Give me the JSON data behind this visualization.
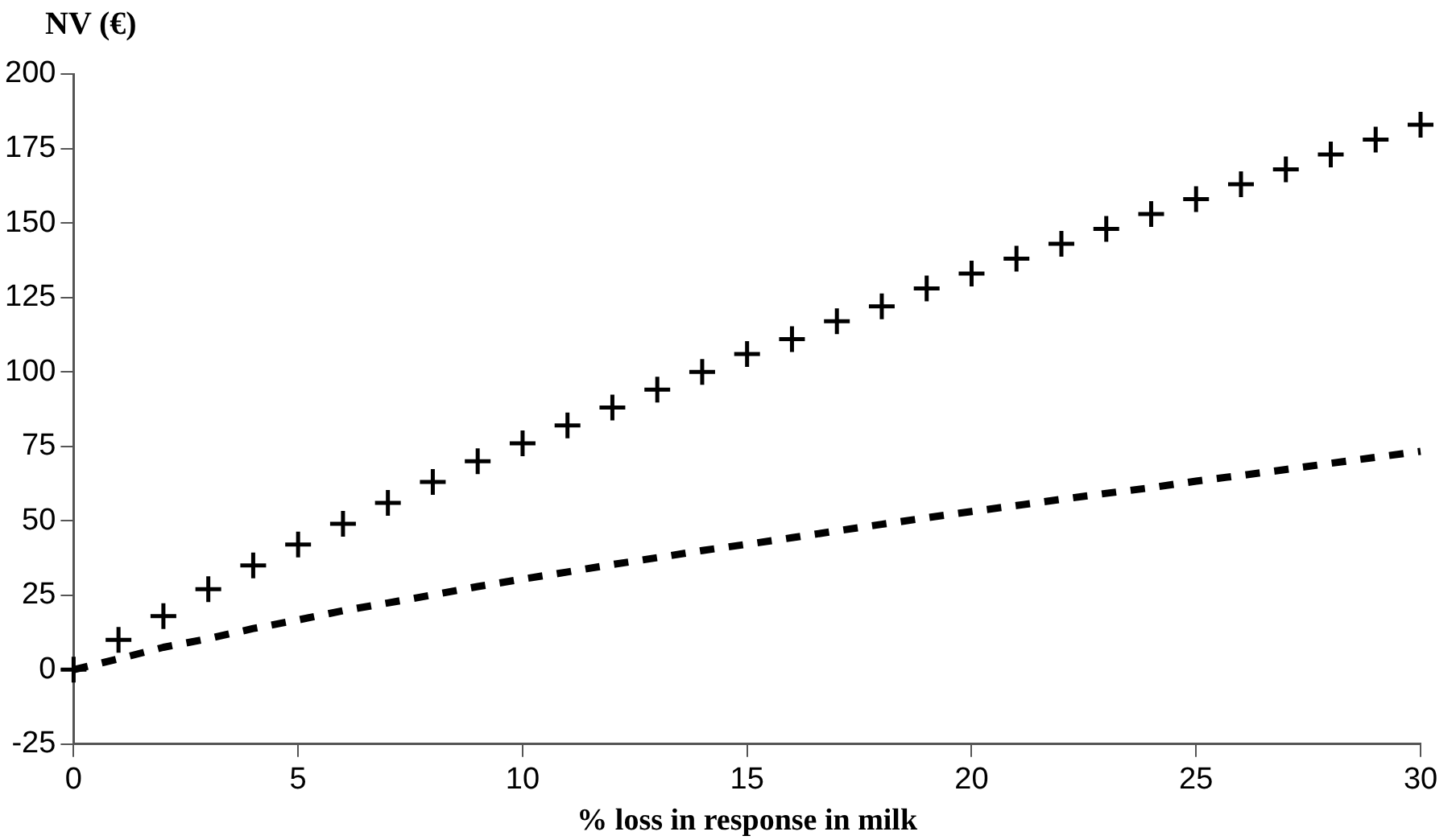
{
  "chart_data": {
    "type": "scatter",
    "ylabel": "NV (€)",
    "xlabel": "% loss in response in milk",
    "x": [
      0,
      1,
      2,
      3,
      4,
      5,
      6,
      7,
      8,
      9,
      10,
      11,
      12,
      13,
      14,
      15,
      16,
      17,
      18,
      19,
      20,
      21,
      22,
      23,
      24,
      25,
      26,
      27,
      28,
      29,
      30
    ],
    "series": [
      {
        "type": "scatter",
        "marker": "cross",
        "color": "#000000",
        "values": [
          0,
          10,
          18,
          27,
          35,
          42,
          49,
          56,
          63,
          70,
          76,
          82,
          88,
          94,
          100,
          106,
          111,
          117,
          122,
          128,
          133,
          138,
          143,
          148,
          153,
          158,
          163,
          168,
          173,
          178,
          183
        ]
      },
      {
        "type": "line",
        "marker": "none",
        "line_style": "dashed",
        "color": "#000000",
        "values": [
          0,
          3.6,
          7.5,
          10.4,
          13.8,
          16.7,
          19.8,
          22.4,
          25.1,
          27.9,
          30.4,
          32.8,
          35.3,
          37.6,
          40,
          42.1,
          44.3,
          46.6,
          48.8,
          51,
          53.1,
          55.1,
          57.2,
          59.2,
          61.1,
          63.3,
          65.2,
          67.2,
          69.3,
          71.3,
          73.3
        ]
      }
    ],
    "xlim": [
      0,
      30
    ],
    "xticks": [
      0,
      5,
      10,
      15,
      20,
      25,
      30
    ],
    "ylim": [
      -25,
      200
    ],
    "yticks": [
      -25,
      0,
      25,
      50,
      75,
      100,
      125,
      150,
      175,
      200
    ],
    "grid": false,
    "legend": false
  }
}
